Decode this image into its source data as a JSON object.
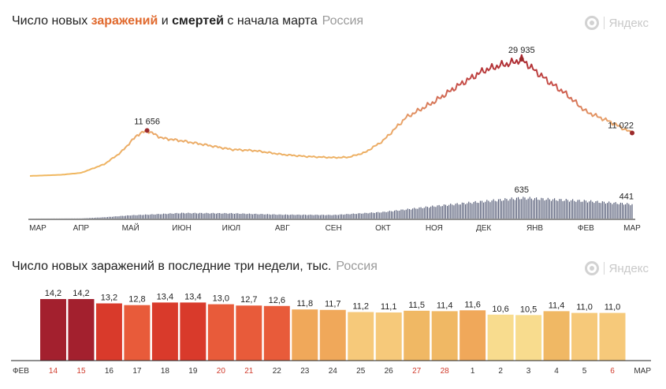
{
  "chart1": {
    "title_prefix": "Число новых ",
    "title_inf": "заражений",
    "title_mid": " и ",
    "title_dth": "смертей",
    "title_suffix": " с начала марта",
    "region": "Россия",
    "brand": "Яндекс",
    "brand_icon": "yandex-logo-icon"
  },
  "chart2": {
    "title": "Число новых заражений в последние три недели, тыс.",
    "region": "Россия",
    "brand": "Яндекс",
    "brand_icon": "yandex-logo-icon"
  },
  "chart_data": [
    {
      "type": "line",
      "series": [
        {
          "name": "заражений",
          "color_low": "#f0b24a",
          "color_high": "#a8232d",
          "x": [
            "2020-03-01",
            "2020-03-20",
            "2020-04-01",
            "2020-04-15",
            "2020-04-25",
            "2020-05-05",
            "2020-05-11",
            "2020-05-20",
            "2020-06-01",
            "2020-06-15",
            "2020-07-01",
            "2020-07-15",
            "2020-08-01",
            "2020-08-15",
            "2020-09-01",
            "2020-09-10",
            "2020-09-20",
            "2020-10-01",
            "2020-10-15",
            "2020-11-01",
            "2020-11-15",
            "2020-12-01",
            "2020-12-10",
            "2020-12-20",
            "2020-12-24",
            "2021-01-01",
            "2021-01-10",
            "2021-01-20",
            "2021-02-01",
            "2021-02-15",
            "2021-03-01"
          ],
          "values": [
            0,
            300,
            800,
            3000,
            6000,
            10500,
            11656,
            9700,
            9000,
            8000,
            6800,
            6500,
            5500,
            5000,
            4700,
            4800,
            6000,
            9000,
            15000,
            19000,
            23000,
            27000,
            28200,
            29200,
            29935,
            27000,
            24000,
            21000,
            16500,
            14000,
            11022
          ]
        },
        {
          "name": "смертей",
          "color": "#4d5470",
          "x": [
            "2020-03-01",
            "2020-04-01",
            "2020-04-15",
            "2020-05-01",
            "2020-05-15",
            "2020-06-01",
            "2020-07-01",
            "2020-08-01",
            "2020-09-01",
            "2020-10-01",
            "2020-11-01",
            "2020-12-01",
            "2020-12-24",
            "2021-01-15",
            "2021-02-01",
            "2021-03-01"
          ],
          "values": [
            0,
            5,
            40,
            100,
            130,
            170,
            160,
            120,
            110,
            200,
            380,
            530,
            635,
            580,
            540,
            441
          ]
        }
      ],
      "annotations": [
        {
          "x": "2020-05-11",
          "y": 11656,
          "label": "11 656",
          "series": "заражений"
        },
        {
          "x": "2020-12-24",
          "y": 29935,
          "label": "29 935",
          "series": "заражений"
        },
        {
          "x": "2021-03-01",
          "y": 11022,
          "label": "11 022",
          "series": "заражений"
        },
        {
          "x": "2020-12-24",
          "y": 635,
          "label": "635",
          "series": "смертей"
        },
        {
          "x": "2021-03-01",
          "y": 441,
          "label": "441",
          "series": "смертей"
        }
      ],
      "x_tick_labels": [
        "МАР",
        "АПР",
        "МАЙ",
        "ИЮН",
        "ИЮЛ",
        "АВГ",
        "СЕН",
        "ОКТ",
        "НОЯ",
        "ДЕК",
        "ЯНВ",
        "ФЕВ",
        "МАР"
      ],
      "x_ticks": [
        "2020-03-01",
        "2020-04-01",
        "2020-05-01",
        "2020-06-01",
        "2020-07-01",
        "2020-08-01",
        "2020-09-01",
        "2020-10-01",
        "2020-11-01",
        "2020-12-01",
        "2021-01-01",
        "2021-02-01",
        "2021-03-01"
      ],
      "grid": false
    },
    {
      "type": "bar",
      "categories": [
        "14",
        "15",
        "16",
        "17",
        "18",
        "19",
        "20",
        "21",
        "22",
        "23",
        "24",
        "25",
        "26",
        "27",
        "28",
        "1",
        "2",
        "3",
        "4",
        "5",
        "6"
      ],
      "values": [
        14.2,
        14.2,
        13.2,
        12.8,
        13.4,
        13.4,
        13.0,
        12.7,
        12.6,
        11.8,
        11.7,
        11.2,
        11.1,
        11.5,
        11.4,
        11.6,
        10.6,
        10.5,
        11.4,
        11.0,
        11.0
      ],
      "value_labels": [
        "14,2",
        "14,2",
        "13,2",
        "12,8",
        "13,4",
        "13,4",
        "13,0",
        "12,7",
        "12,6",
        "11,8",
        "11,7",
        "11,2",
        "11,1",
        "11,5",
        "11,4",
        "11,6",
        "10,6",
        "10,5",
        "11,4",
        "11,0",
        "11,0"
      ],
      "bar_colors": [
        "#a3202e",
        "#a3202e",
        "#d93a2b",
        "#e85b3a",
        "#d93a2b",
        "#d93a2b",
        "#e85b3a",
        "#e85b3a",
        "#e85b3a",
        "#f0a85a",
        "#f0a85a",
        "#f6c97a",
        "#f6c97a",
        "#f0b864",
        "#f0b864",
        "#f0a85a",
        "#f8dc8e",
        "#f8dc8e",
        "#f0b864",
        "#f6c97a",
        "#f6c97a"
      ],
      "weekend": [
        true,
        true,
        false,
        false,
        false,
        false,
        true,
        true,
        false,
        false,
        false,
        false,
        false,
        true,
        true,
        false,
        false,
        false,
        false,
        false,
        true
      ],
      "month_left": "ФЕВ",
      "month_right": "МАР",
      "grid": false
    }
  ]
}
